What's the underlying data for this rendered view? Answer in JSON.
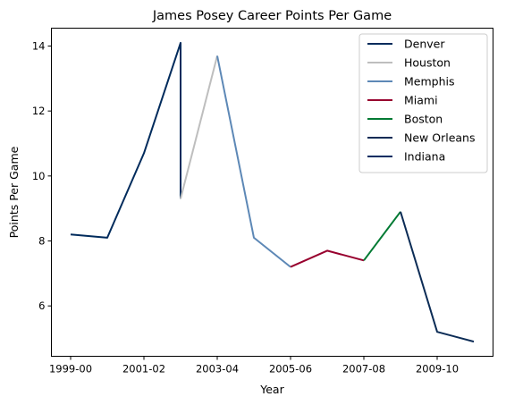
{
  "chart_data": {
    "type": "line",
    "title": "James Posey Career Points Per Game",
    "xlabel": "Year",
    "ylabel": "Points Per Game",
    "x": [
      "1999-00",
      "2000-01",
      "2001-02",
      "2002-03",
      "2002-03",
      "2003-04",
      "2004-05",
      "2005-06",
      "2006-07",
      "2007-08",
      "2008-09",
      "2009-10",
      "2010-11"
    ],
    "xticks": [
      "1999-00",
      "2001-02",
      "2003-04",
      "2005-06",
      "2007-08",
      "2009-10"
    ],
    "yticks": [
      6,
      8,
      10,
      12,
      14
    ],
    "ylim": [
      4.45,
      14.55
    ],
    "grid": false,
    "legend_position": "top-right",
    "series": [
      {
        "name": "Denver",
        "color": "#002b5c",
        "points": [
          [
            "1999-00",
            8.2
          ],
          [
            "2000-01",
            8.1
          ],
          [
            "2001-02",
            10.7
          ],
          [
            "2002-03",
            14.1
          ],
          [
            "2002-03",
            9.3
          ]
        ]
      },
      {
        "name": "Houston",
        "color": "#bebebe",
        "points": [
          [
            "2002-03",
            9.3
          ],
          [
            "2003-04",
            13.7
          ]
        ]
      },
      {
        "name": "Memphis",
        "color": "#5d88b6",
        "points": [
          [
            "2003-04",
            13.7
          ],
          [
            "2004-05",
            8.1
          ],
          [
            "2005-06",
            7.2
          ]
        ]
      },
      {
        "name": "Miami",
        "color": "#98002e",
        "points": [
          [
            "2005-06",
            7.2
          ],
          [
            "2006-07",
            7.7
          ],
          [
            "2007-08",
            7.4
          ]
        ]
      },
      {
        "name": "Boston",
        "color": "#007a33",
        "points": [
          [
            "2007-08",
            7.4
          ],
          [
            "2008-09",
            8.9
          ]
        ]
      },
      {
        "name": "New Orleans",
        "color": "#0c2c56",
        "points": [
          [
            "2008-09",
            8.9
          ],
          [
            "2009-10",
            5.2
          ],
          [
            "2010-11",
            4.9
          ]
        ]
      },
      {
        "name": "Indiana",
        "color": "#002d62",
        "points": [
          [
            "2010-11",
            4.9
          ]
        ]
      }
    ]
  }
}
